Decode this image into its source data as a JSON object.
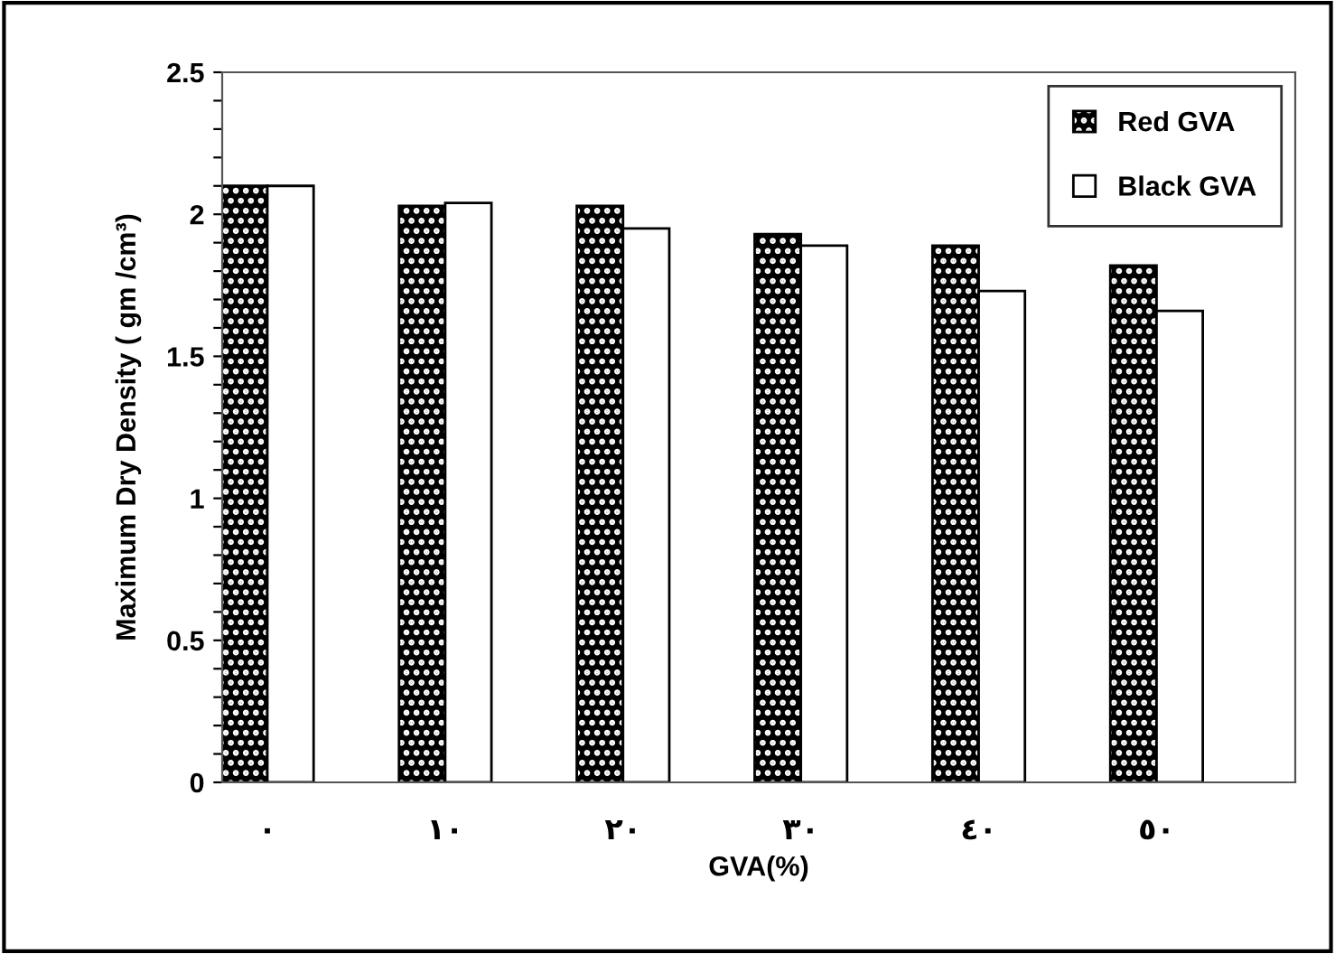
{
  "chart_data": {
    "type": "bar",
    "xlabel": "GVA(%)",
    "ylabel": "Maximum Dry Density ( gm /cm³)",
    "categories": [
      "٠",
      "١٠",
      "٢٠",
      "٣٠",
      "٤٠",
      "٥٠"
    ],
    "series": [
      {
        "name": "Red GVA",
        "color": "#000000",
        "values": [
          2.1,
          2.03,
          2.03,
          1.93,
          1.89,
          1.82
        ]
      },
      {
        "name": "Black GVA",
        "color": "#ffffff",
        "values": [
          2.1,
          2.04,
          1.95,
          1.89,
          1.73,
          1.66
        ]
      }
    ],
    "ylim": [
      0,
      2.5
    ],
    "yticks": [
      0,
      {
        "value": 0.1,
        "label": null
      },
      {
        "value": 0.2,
        "label": null
      },
      {
        "value": 0.3,
        "label": null
      },
      {
        "value": 0.4,
        "label": null
      },
      0.5,
      {
        "value": 0.6,
        "label": null
      },
      {
        "value": 0.7,
        "label": null
      },
      {
        "value": 0.8,
        "label": null
      },
      {
        "value": 0.9,
        "label": null
      },
      1,
      {
        "value": 1.1,
        "label": null
      },
      {
        "value": 1.2,
        "label": null
      },
      {
        "value": 1.3,
        "label": null
      },
      {
        "value": 1.4,
        "label": null
      },
      1.5,
      {
        "value": 1.6,
        "label": null
      },
      {
        "value": 1.7,
        "label": null
      },
      {
        "value": 1.8,
        "label": null
      },
      {
        "value": 1.9,
        "label": null
      },
      2,
      {
        "value": 2.1,
        "label": null
      },
      {
        "value": 2.2,
        "label": null
      },
      {
        "value": 2.3,
        "label": null
      },
      {
        "value": 2.4,
        "label": null
      },
      2.5
    ],
    "grid": false,
    "legend": "top right"
  }
}
